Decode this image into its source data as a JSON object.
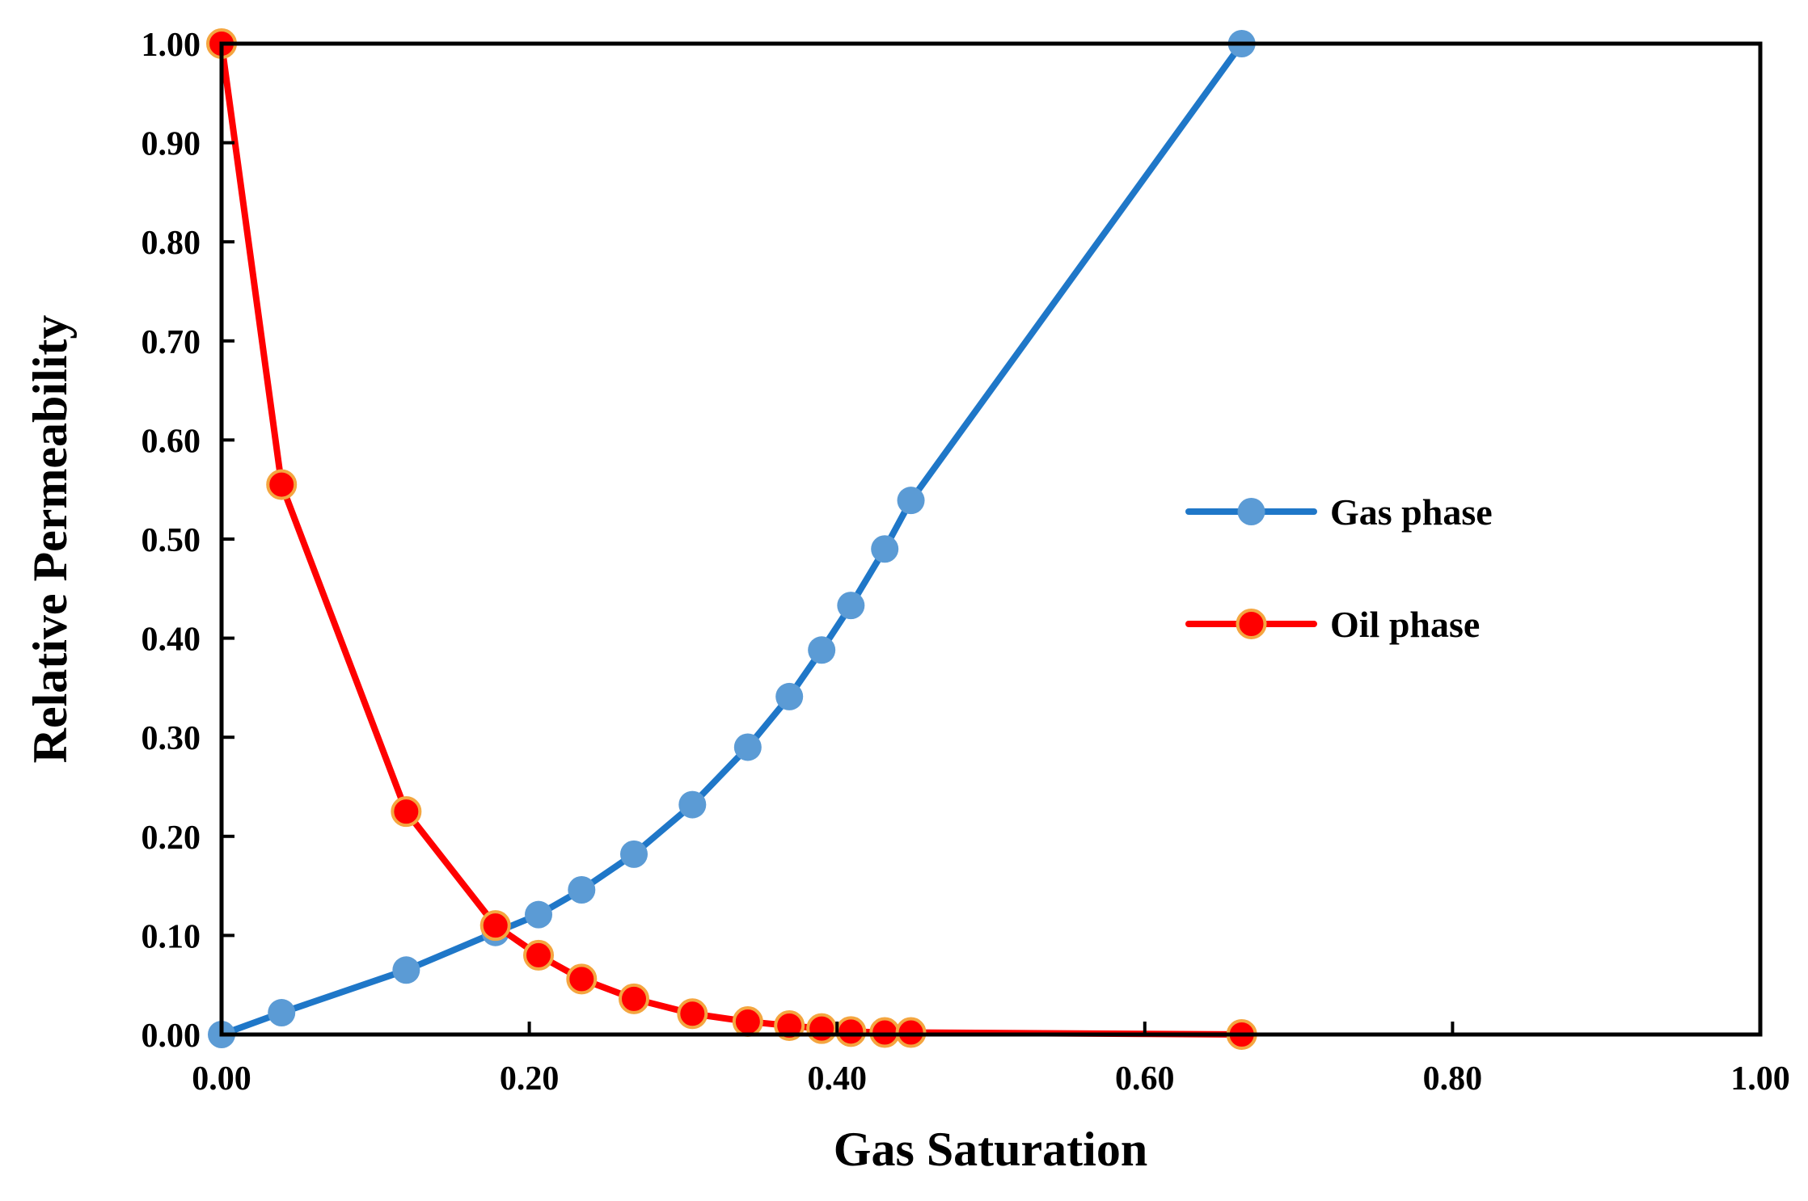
{
  "chart_data": {
    "type": "line",
    "title": "",
    "xlabel": "Gas Saturation",
    "ylabel": "Relative Permeability",
    "xlim": [
      0,
      1
    ],
    "ylim": [
      0,
      1
    ],
    "xticks": [
      0,
      0.2,
      0.4,
      0.6,
      0.8,
      1.0
    ],
    "yticks": [
      0,
      0.1,
      0.2,
      0.3,
      0.4,
      0.5,
      0.6,
      0.7,
      0.8,
      0.9,
      1.0
    ],
    "xtick_labels": [
      "0.00",
      "0.20",
      "0.40",
      "0.60",
      "0.80",
      "1.00"
    ],
    "ytick_labels": [
      "0.00",
      "0.10",
      "0.20",
      "0.30",
      "0.40",
      "0.50",
      "0.60",
      "0.70",
      "0.80",
      "0.90",
      "1.00"
    ],
    "grid": false,
    "legend_position": "center-right",
    "series": [
      {
        "name": "Gas phase",
        "color": "#1f77c8",
        "marker_color": "#5b9bd5",
        "x": [
          0.0,
          0.039,
          0.12,
          0.178,
          0.206,
          0.234,
          0.268,
          0.306,
          0.342,
          0.369,
          0.39,
          0.409,
          0.431,
          0.448,
          0.663
        ],
        "y": [
          0.0,
          0.022,
          0.065,
          0.103,
          0.121,
          0.146,
          0.182,
          0.232,
          0.29,
          0.341,
          0.388,
          0.433,
          0.49,
          0.539,
          1.0
        ]
      },
      {
        "name": "Oil phase",
        "color": "#ff0000",
        "marker_color": "#ff0000",
        "marker_edge": "#f4a640",
        "x": [
          0.0,
          0.039,
          0.12,
          0.178,
          0.206,
          0.234,
          0.268,
          0.306,
          0.342,
          0.369,
          0.39,
          0.409,
          0.431,
          0.448,
          0.663
        ],
        "y": [
          1.0,
          0.555,
          0.225,
          0.11,
          0.08,
          0.056,
          0.036,
          0.021,
          0.013,
          0.009,
          0.006,
          0.003,
          0.002,
          0.002,
          0.0
        ]
      }
    ]
  }
}
